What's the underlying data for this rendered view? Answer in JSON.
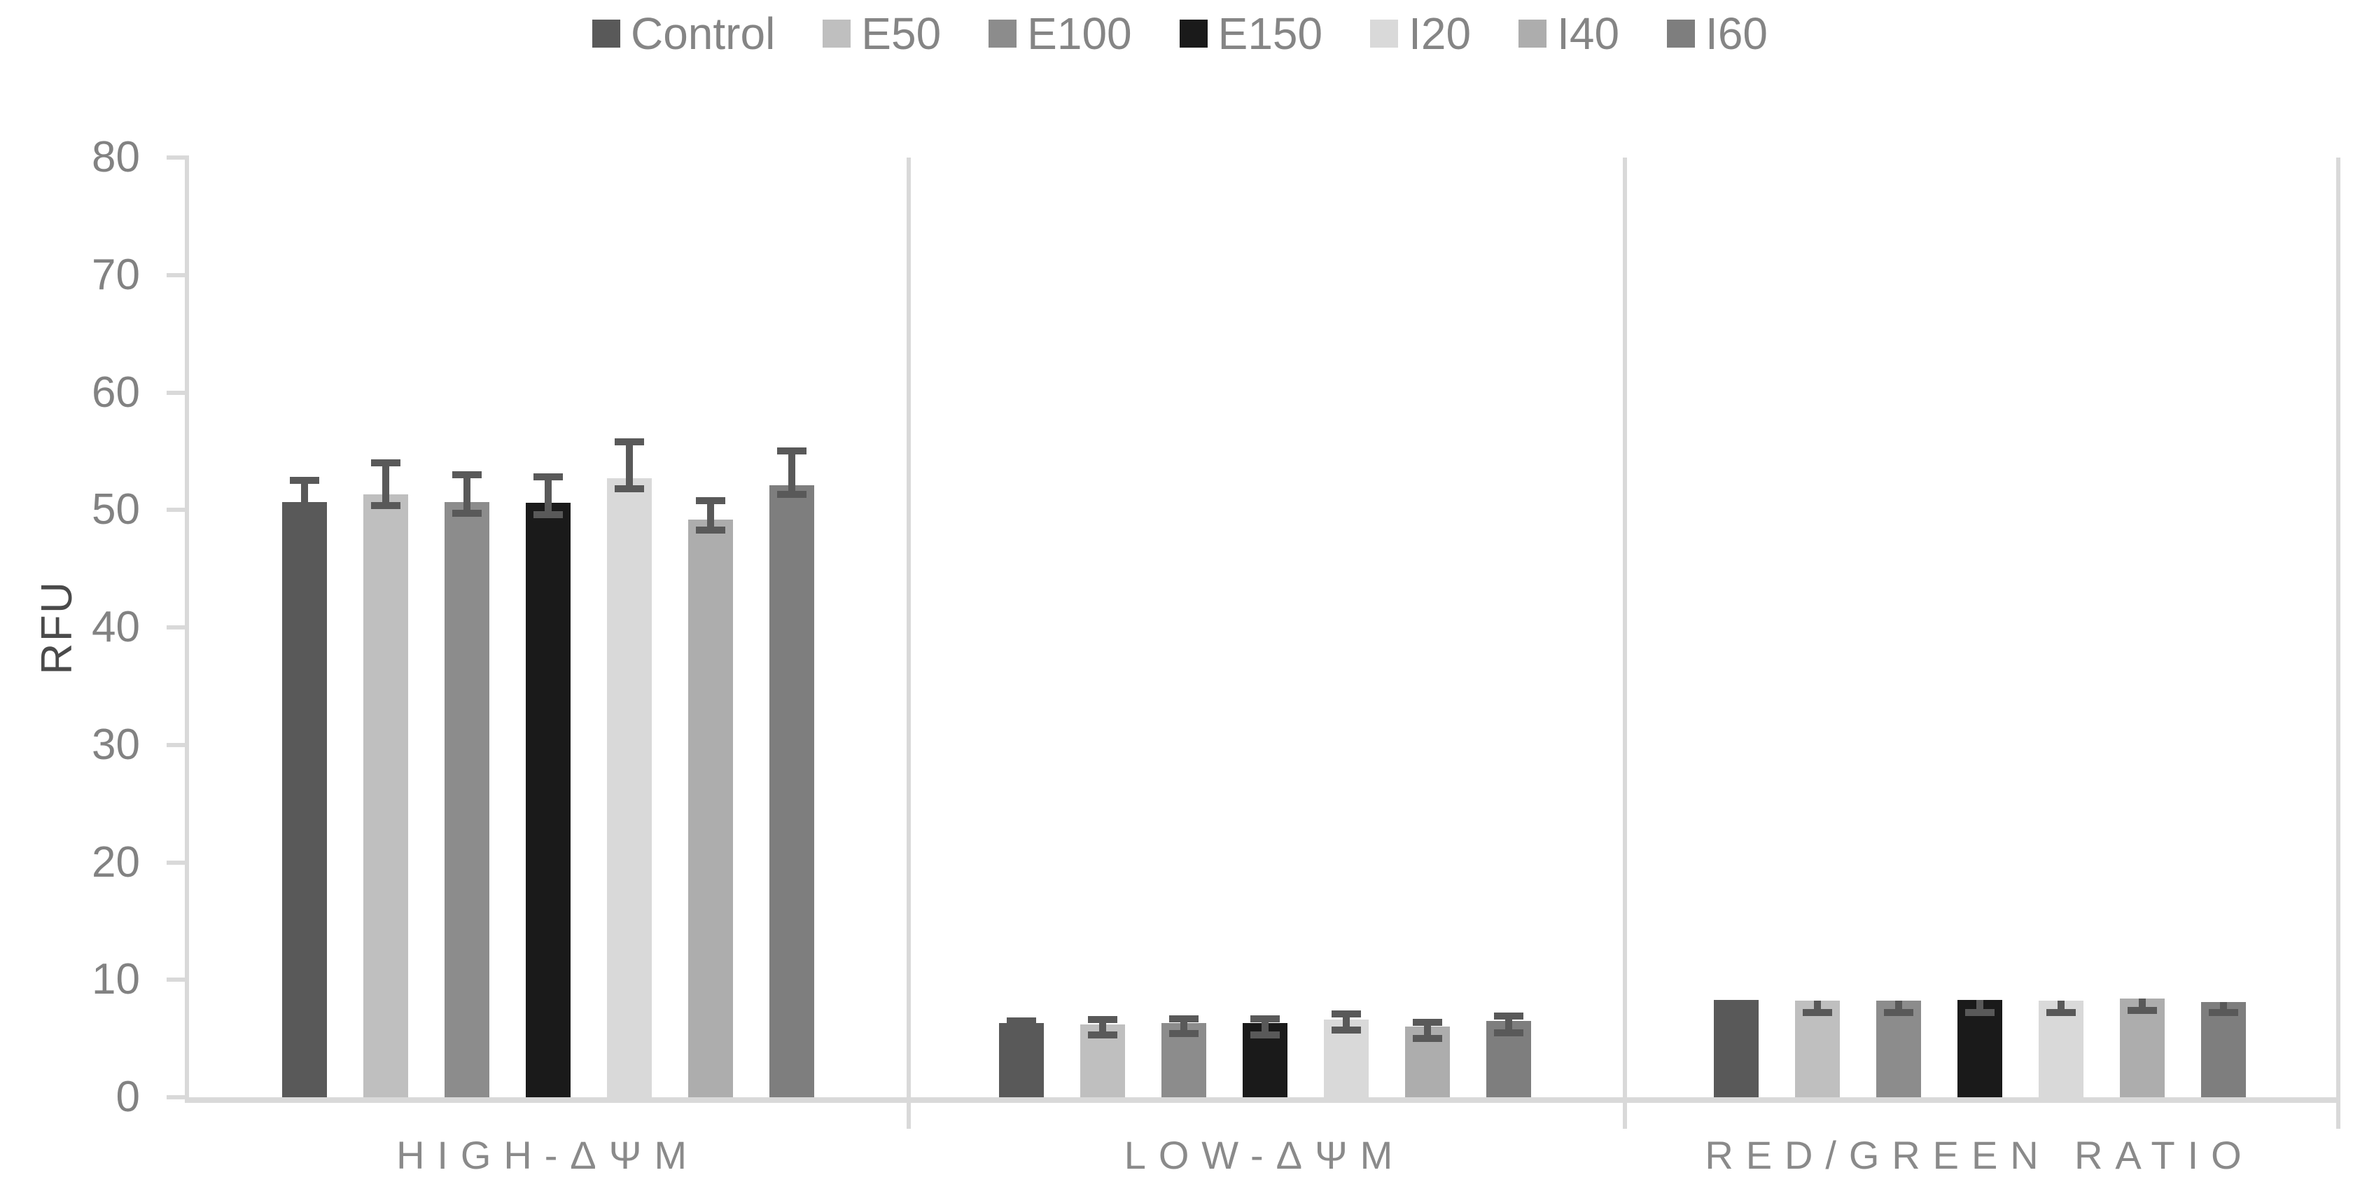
{
  "chart_data": {
    "type": "bar",
    "title": "",
    "ylabel": "RFU",
    "xlabel": "",
    "ylim": [
      0,
      80
    ],
    "y_ticks": [
      0,
      10,
      20,
      30,
      40,
      50,
      60,
      70,
      80
    ],
    "grid": false,
    "legend_position": "top-center",
    "categories": [
      "HIGH-ΔΨM",
      "LOW-ΔΨM",
      "RED/GREEN RATIO"
    ],
    "series": [
      {
        "name": "Control",
        "color": "#595959",
        "values": [
          50.7,
          6.3,
          8.3
        ],
        "err_up": [
          1.8,
          0.2,
          0
        ],
        "err_down": [
          1.0,
          1.0,
          0.9
        ]
      },
      {
        "name": "E50",
        "color": "#bfbfbf",
        "values": [
          51.3,
          6.2,
          8.2
        ],
        "err_up": [
          2.7,
          0.4,
          0
        ],
        "err_down": [
          0.9,
          0.9,
          1.0
        ]
      },
      {
        "name": "E100",
        "color": "#8c8c8c",
        "values": [
          50.7,
          6.3,
          8.2
        ],
        "err_up": [
          2.3,
          0.4,
          0
        ],
        "err_down": [
          1.0,
          0.9,
          1.0
        ]
      },
      {
        "name": "E150",
        "color": "#1a1a1a",
        "values": [
          50.6,
          6.3,
          8.3
        ],
        "err_up": [
          2.2,
          0.4,
          0
        ],
        "err_down": [
          1.0,
          1.0,
          1.1
        ]
      },
      {
        "name": "I20",
        "color": "#d9d9d9",
        "values": [
          52.7,
          6.6,
          8.2
        ],
        "err_up": [
          3.1,
          0.5,
          0
        ],
        "err_down": [
          0.9,
          0.9,
          1.0
        ]
      },
      {
        "name": "I40",
        "color": "#adadad",
        "values": [
          49.2,
          6.0,
          8.4
        ],
        "err_up": [
          1.6,
          0.4,
          0
        ],
        "err_down": [
          0.9,
          1.0,
          1.0
        ]
      },
      {
        "name": "I60",
        "color": "#7e7e7e",
        "values": [
          52.1,
          6.5,
          8.1
        ],
        "err_up": [
          2.9,
          0.4,
          0
        ],
        "err_down": [
          0.8,
          1.0,
          0.9
        ]
      }
    ],
    "error_bars": {
      "direction_by_category": [
        "plus-minus",
        "plus-minus",
        "minus-only"
      ],
      "color": "#595959"
    },
    "colors": {
      "axis_line": "#d9d9d9",
      "panel_separator": "#d9d9d9",
      "error_bar": "#595959",
      "tick_label_text": "#828282",
      "category_label_text": "#8a8a8a",
      "legend_label_text": "#858585",
      "axis_title_text": "#4a4a4a",
      "background": "#ffffff"
    }
  }
}
